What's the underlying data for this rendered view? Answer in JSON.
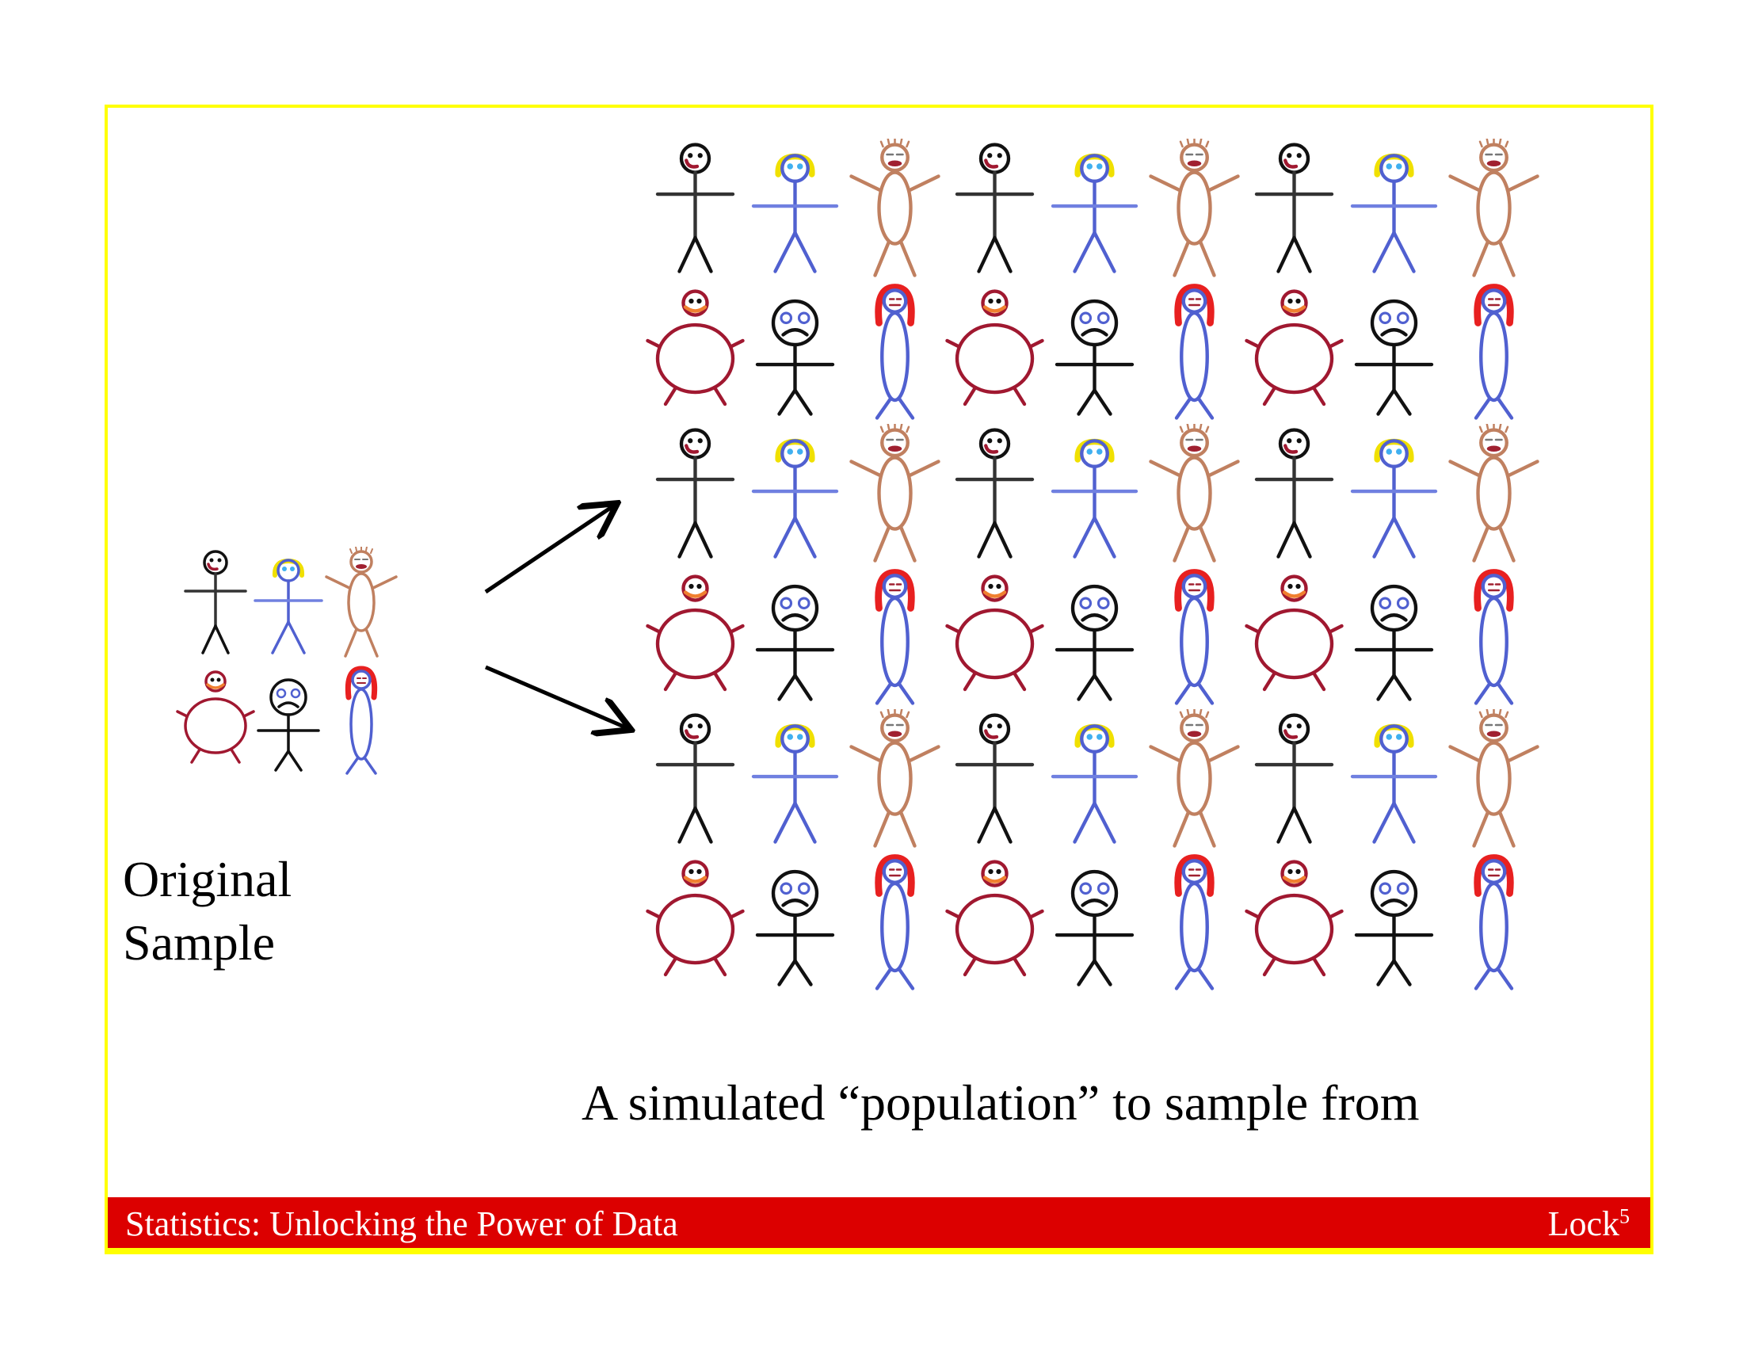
{
  "left_label": {
    "line1": "Original",
    "line2": "Sample"
  },
  "caption": "A simulated “population” to sample from",
  "footer": {
    "title": "Statistics: Unlocking the Power of Data",
    "author": "Lock",
    "author_superscript": "5"
  },
  "colors": {
    "frame": "#ffff00",
    "footer_bg": "#dc0000",
    "footer_text": "#ffffff"
  },
  "original_sample": [
    [
      "stick-man-icon",
      "blonde-figure-icon",
      "tan-figure-icon"
    ],
    [
      "round-red-figure-icon",
      "sad-figure-icon",
      "redhead-figure-icon"
    ]
  ],
  "population": [
    [
      "stick-man-icon",
      "blonde-figure-icon",
      "tan-figure-icon",
      "stick-man-icon",
      "blonde-figure-icon",
      "tan-figure-icon",
      "stick-man-icon",
      "blonde-figure-icon",
      "tan-figure-icon"
    ],
    [
      "round-red-figure-icon",
      "sad-figure-icon",
      "redhead-figure-icon",
      "round-red-figure-icon",
      "sad-figure-icon",
      "redhead-figure-icon",
      "round-red-figure-icon",
      "sad-figure-icon",
      "redhead-figure-icon"
    ],
    [
      "stick-man-icon",
      "blonde-figure-icon",
      "tan-figure-icon",
      "stick-man-icon",
      "blonde-figure-icon",
      "tan-figure-icon",
      "stick-man-icon",
      "blonde-figure-icon",
      "tan-figure-icon"
    ],
    [
      "round-red-figure-icon",
      "sad-figure-icon",
      "redhead-figure-icon",
      "round-red-figure-icon",
      "sad-figure-icon",
      "redhead-figure-icon",
      "round-red-figure-icon",
      "sad-figure-icon",
      "redhead-figure-icon"
    ],
    [
      "stick-man-icon",
      "blonde-figure-icon",
      "tan-figure-icon",
      "stick-man-icon",
      "blonde-figure-icon",
      "tan-figure-icon",
      "stick-man-icon",
      "blonde-figure-icon",
      "tan-figure-icon"
    ],
    [
      "round-red-figure-icon",
      "sad-figure-icon",
      "redhead-figure-icon",
      "round-red-figure-icon",
      "sad-figure-icon",
      "redhead-figure-icon",
      "round-red-figure-icon",
      "sad-figure-icon",
      "redhead-figure-icon"
    ]
  ]
}
